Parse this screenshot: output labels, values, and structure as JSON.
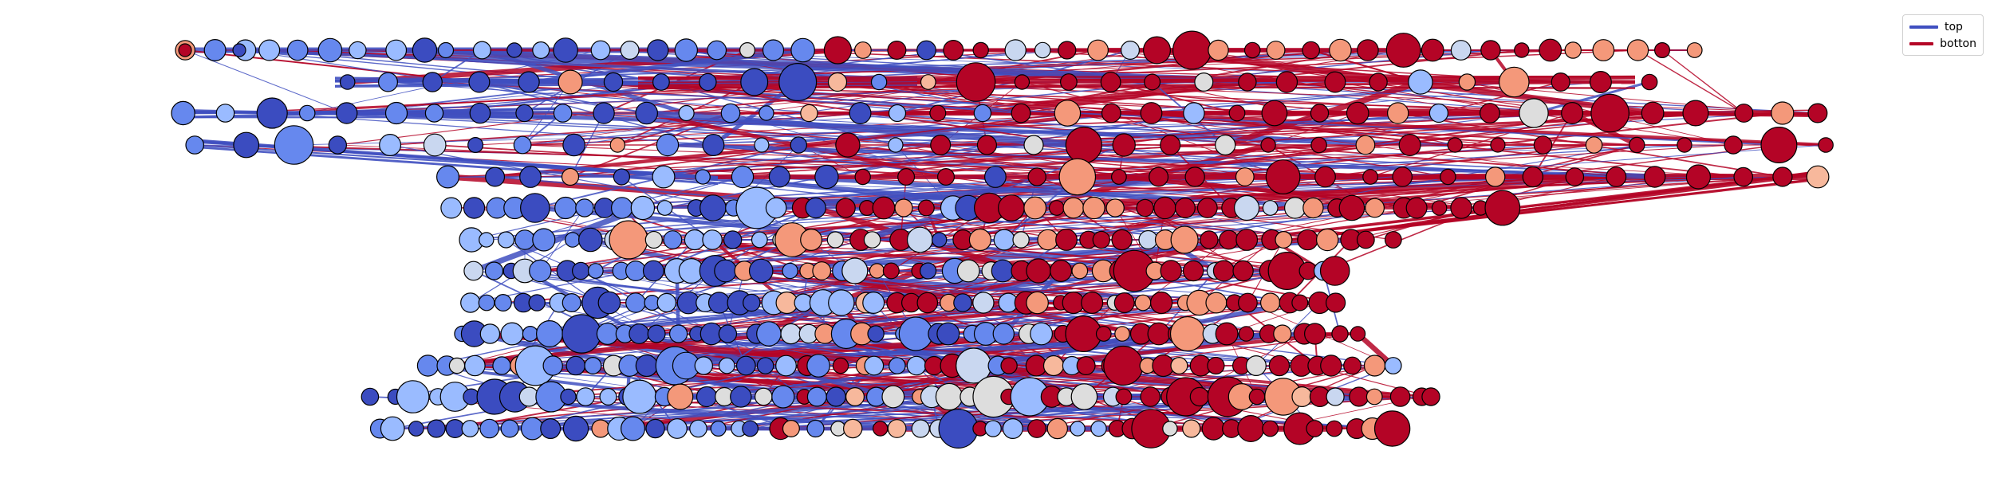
{
  "legend": {
    "entries": [
      {
        "label": "top",
        "color": "#3f4fc0"
      },
      {
        "label": "botton",
        "color": "#b40426"
      }
    ]
  },
  "colors": {
    "blue_dark": "#3b4cc0",
    "blue_mid": "#6688ee",
    "blue_light": "#9abbff",
    "neutral": "#dddddd",
    "pale_blue": "#c9d7f0",
    "salmon": "#f4987a",
    "salmon_light": "#f7b89c",
    "red_dark": "#b40426",
    "edge_blue": "#3f4fc0",
    "edge_red": "#b40426",
    "node_stroke": "#000000"
  }
}
